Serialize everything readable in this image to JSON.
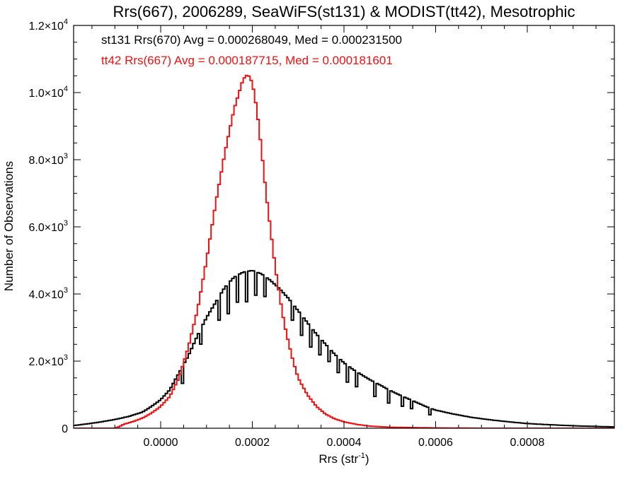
{
  "chart_data": {
    "type": "histogram",
    "title": "Rrs(667), 2006289, SeaWiFS(st131) & MODIST(tt42), Mesotrophic",
    "xlabel": "Rrs (str",
    "xlabel_sup": "-1",
    "xlabel_close": ")",
    "ylabel": "Number of Observations",
    "xlim": [
      -0.00019,
      0.00099
    ],
    "ylim": [
      0,
      12000
    ],
    "x_ticks": [
      {
        "value": 0.0,
        "label": "0.0000"
      },
      {
        "value": 0.0002,
        "label": "0.0002"
      },
      {
        "value": 0.0004,
        "label": "0.0004"
      },
      {
        "value": 0.0006,
        "label": "0.0006"
      },
      {
        "value": 0.0008,
        "label": "0.0008"
      }
    ],
    "y_ticks": [
      {
        "value": 0,
        "label": "0",
        "sup": ""
      },
      {
        "value": 2000,
        "label": "2.0×10",
        "sup": "3"
      },
      {
        "value": 4000,
        "label": "4.0×10",
        "sup": "3"
      },
      {
        "value": 6000,
        "label": "6.0×10",
        "sup": "3"
      },
      {
        "value": 8000,
        "label": "8.0×10",
        "sup": "3"
      },
      {
        "value": 10000,
        "label": "1.0×10",
        "sup": "4"
      },
      {
        "value": 12000,
        "label": "1.2×10",
        "sup": "4"
      }
    ],
    "annotations": [
      {
        "text": "st131 Rrs(670) Avg = 0.000268049, Med = 0.000231500",
        "color": "#000000"
      },
      {
        "text": "tt42 Rrs(667) Avg = 0.000187715, Med = 0.000181601",
        "color": "#ee1111"
      }
    ],
    "series": [
      {
        "id": "st131",
        "color": "#000000",
        "points": [
          [
            -0.00019,
            80
          ],
          [
            -0.00016,
            130
          ],
          [
            -0.00013,
            190
          ],
          [
            -0.0001,
            260
          ],
          [
            -7e-05,
            350
          ],
          [
            -4e-05,
            480
          ],
          [
            -2e-05,
            650
          ],
          [
            0.0,
            850
          ],
          [
            2e-05,
            1150
          ],
          [
            4e-05,
            1650
          ],
          [
            6e-05,
            2150
          ],
          [
            8e-05,
            2750
          ],
          [
            0.0001,
            3300
          ],
          [
            0.00012,
            3750
          ],
          [
            0.00014,
            4200
          ],
          [
            0.00016,
            4500
          ],
          [
            0.00018,
            4650
          ],
          [
            0.0002,
            4700
          ],
          [
            0.00022,
            4600
          ],
          [
            0.00024,
            4400
          ],
          [
            0.00026,
            4150
          ],
          [
            0.00028,
            3850
          ],
          [
            0.0003,
            3500
          ],
          [
            0.00032,
            3150
          ],
          [
            0.00034,
            2800
          ],
          [
            0.00036,
            2500
          ],
          [
            0.00038,
            2200
          ],
          [
            0.0004,
            1950
          ],
          [
            0.00042,
            1750
          ],
          [
            0.00044,
            1580
          ],
          [
            0.00046,
            1420
          ],
          [
            0.00048,
            1280
          ],
          [
            0.0005,
            1130
          ],
          [
            0.00052,
            1000
          ],
          [
            0.00054,
            880
          ],
          [
            0.00056,
            760
          ],
          [
            0.00058,
            640
          ],
          [
            0.0006,
            540
          ],
          [
            0.00064,
            420
          ],
          [
            0.00068,
            320
          ],
          [
            0.00072,
            250
          ],
          [
            0.00076,
            190
          ],
          [
            0.0008,
            140
          ],
          [
            0.00084,
            110
          ],
          [
            0.00088,
            85
          ],
          [
            0.00092,
            65
          ],
          [
            0.00096,
            50
          ],
          [
            0.00099,
            40
          ]
        ],
        "dips": [
          [
            5e-05,
            500
          ],
          [
            9e-05,
            450
          ],
          [
            0.00013,
            700
          ],
          [
            0.00015,
            900
          ],
          [
            0.00017,
            800
          ],
          [
            0.00019,
            900
          ],
          [
            0.00021,
            700
          ],
          [
            0.00023,
            600
          ],
          [
            0.00029,
            500
          ],
          [
            0.00031,
            600
          ],
          [
            0.00033,
            600
          ],
          [
            0.00035,
            500
          ],
          [
            0.00037,
            400
          ],
          [
            0.00039,
            450
          ],
          [
            0.00041,
            500
          ],
          [
            0.00043,
            450
          ],
          [
            0.00047,
            420
          ],
          [
            0.0005,
            400
          ],
          [
            0.00053,
            300
          ],
          [
            0.00055,
            250
          ],
          [
            0.00059,
            200
          ]
        ]
      },
      {
        "id": "tt42",
        "color": "#ee1111",
        "points": [
          [
            -0.00019,
            0
          ],
          [
            -0.0001,
            0
          ],
          [
            -9e-05,
            50
          ],
          [
            -8e-05,
            120
          ],
          [
            -6e-05,
            200
          ],
          [
            -4e-05,
            300
          ],
          [
            -2e-05,
            450
          ],
          [
            0.0,
            650
          ],
          [
            2e-05,
            950
          ],
          [
            4e-05,
            1500
          ],
          [
            6e-05,
            2400
          ],
          [
            8e-05,
            3500
          ],
          [
            0.0001,
            5000
          ],
          [
            0.00012,
            6700
          ],
          [
            0.00014,
            8200
          ],
          [
            0.00016,
            9500
          ],
          [
            0.00018,
            10400
          ],
          [
            0.00019,
            10550
          ],
          [
            0.0002,
            10300
          ],
          [
            0.00021,
            9500
          ],
          [
            0.00022,
            8300
          ],
          [
            0.00023,
            7000
          ],
          [
            0.00024,
            5900
          ],
          [
            0.00025,
            4800
          ],
          [
            0.00026,
            3900
          ],
          [
            0.00027,
            3100
          ],
          [
            0.00028,
            2500
          ],
          [
            0.00029,
            1950
          ],
          [
            0.0003,
            1500
          ],
          [
            0.00032,
            1000
          ],
          [
            0.00034,
            650
          ],
          [
            0.00036,
            420
          ],
          [
            0.00038,
            280
          ],
          [
            0.0004,
            190
          ],
          [
            0.00043,
            110
          ],
          [
            0.00046,
            60
          ],
          [
            0.0005,
            30
          ],
          [
            0.0006,
            10
          ],
          [
            0.0007,
            0
          ],
          [
            0.00099,
            0
          ]
        ]
      }
    ]
  }
}
